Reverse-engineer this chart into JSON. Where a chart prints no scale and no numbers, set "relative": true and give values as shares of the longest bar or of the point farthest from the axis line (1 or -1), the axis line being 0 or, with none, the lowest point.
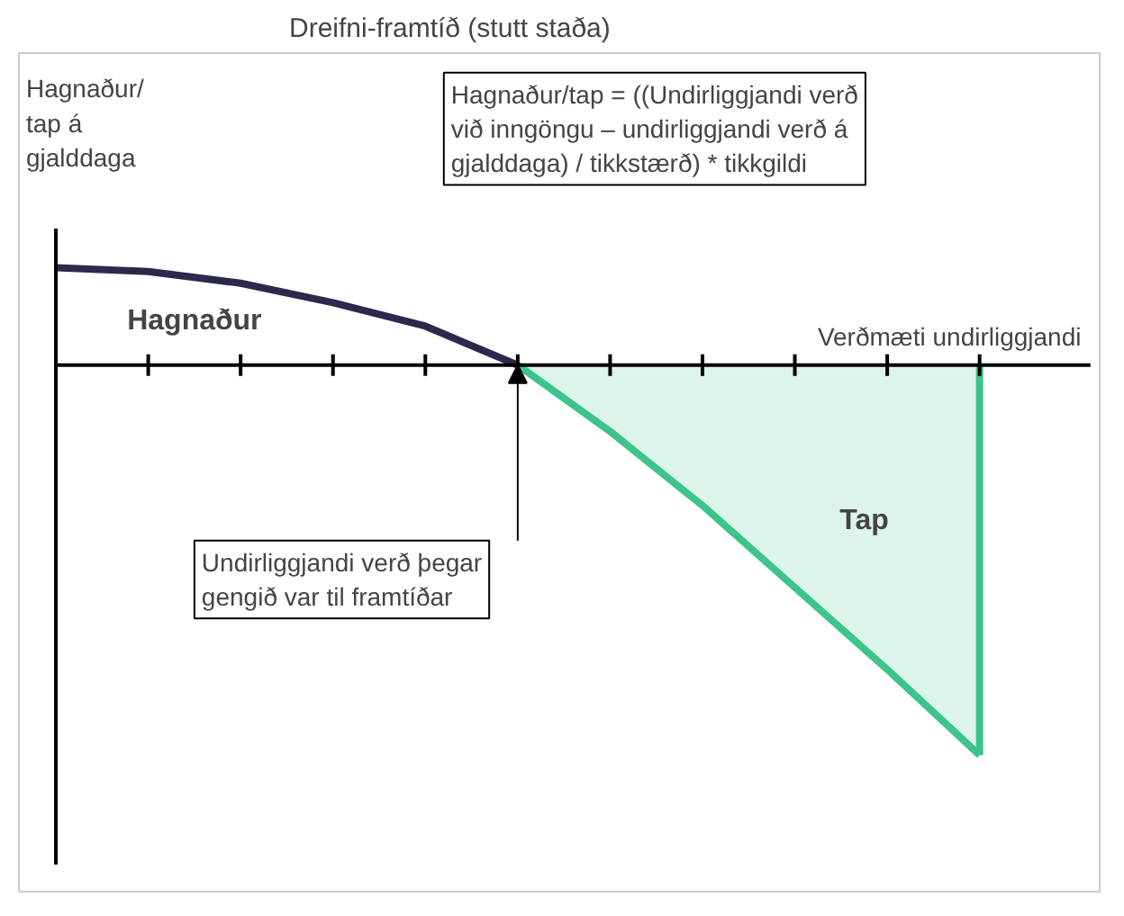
{
  "chart_data": {
    "type": "line",
    "relative": true,
    "title": "Dreifni-framtíð (stutt staða)",
    "xlabel": "Verðmæti undirliggjandi",
    "ylabel": "Hagnaður/ tap á gjalddaga",
    "categories": [
      null,
      null,
      null,
      null,
      null,
      null,
      null,
      null,
      null,
      null,
      null
    ],
    "series": [
      {
        "name": "Hagnaður",
        "color": "#2b2a4c",
        "values": [
          0.25,
          0.24,
          0.21,
          0.16,
          0.1,
          0,
          null,
          null,
          null,
          null,
          null
        ]
      },
      {
        "name": "Tap",
        "type": "area",
        "color": "#3cc48a",
        "values": [
          null,
          null,
          null,
          null,
          null,
          0,
          -0.17,
          -0.36,
          -0.57,
          -0.78,
          -1
        ]
      }
    ],
    "annotations": [
      "Hagnaður/tap = ((Undirliggjandi verð við inngöngu – undirliggjandi verð á gjalddaga) / tikkstærð) * tikkgildi",
      "Undirliggjandi verð þegar gengið var til framtíðar"
    ],
    "grid": false
  }
}
